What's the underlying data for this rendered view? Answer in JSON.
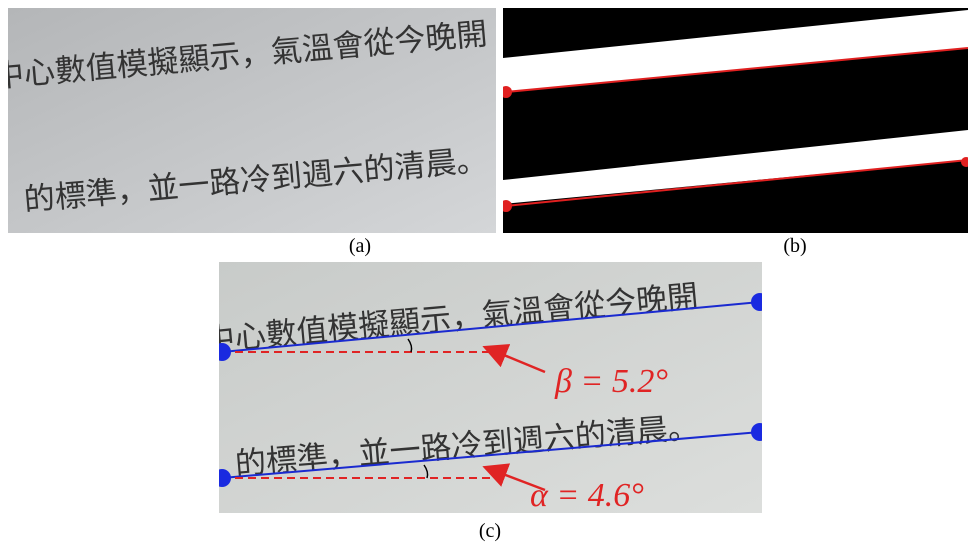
{
  "panels": {
    "a": {
      "label": "(a)",
      "lines": [
        "中心數值模擬顯示，氣溫會從今晚開",
        "」的標準，並一路冷到週六的清晨。"
      ]
    },
    "b": {
      "label": "(b)"
    },
    "c": {
      "label": "(c)",
      "lines": [
        "中心數值模擬顯示，氣溫會從今晚開",
        "」的標準，並一路冷到週六的清晨。"
      ],
      "annotations": [
        "β = 5.2°",
        "α = 4.6°"
      ]
    }
  }
}
